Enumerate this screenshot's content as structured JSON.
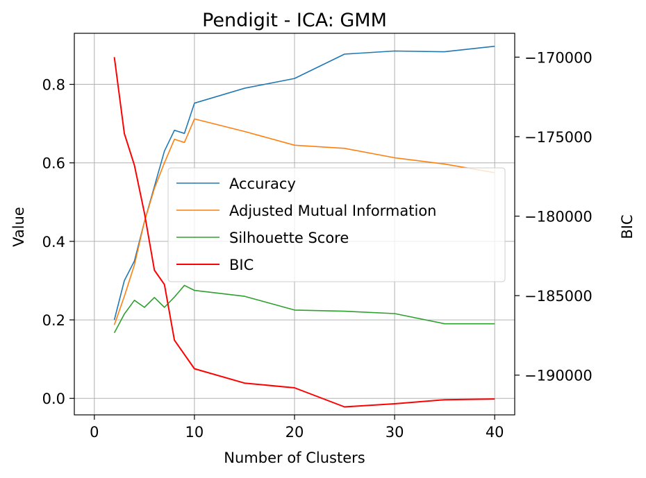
{
  "chart_data": {
    "type": "line",
    "title": "Pendigit - ICA: GMM",
    "xlabel": "Number of Clusters",
    "ylabel": "Value",
    "y2label": "BIC",
    "xlim": [
      -2,
      42
    ],
    "ylim": [
      -0.042,
      0.93
    ],
    "y2lim": [
      -192500,
      -168500
    ],
    "xticks": [
      0,
      10,
      20,
      30,
      40
    ],
    "xtick_labels": [
      "0",
      "10",
      "20",
      "30",
      "40"
    ],
    "yticks": [
      0.0,
      0.2,
      0.4,
      0.6,
      0.8
    ],
    "ytick_labels": [
      "0.0",
      "0.2",
      "0.4",
      "0.6",
      "0.8"
    ],
    "y2ticks": [
      -170000,
      -175000,
      -180000,
      -185000,
      -190000
    ],
    "y2tick_labels": [
      "−170000",
      "−175000",
      "−180000",
      "−185000",
      "−190000"
    ],
    "grid": true,
    "legend_position": "center-right",
    "x": [
      2,
      3,
      4,
      5,
      6,
      7,
      8,
      9,
      10,
      15,
      20,
      25,
      30,
      35,
      40
    ],
    "series": [
      {
        "name": "Accuracy",
        "axis": "left",
        "color": "#1f77b4",
        "values": [
          0.2,
          0.3,
          0.35,
          0.45,
          0.54,
          0.63,
          0.683,
          0.675,
          0.752,
          0.79,
          0.815,
          0.877,
          0.885,
          0.883,
          0.897
        ]
      },
      {
        "name": "Adjusted Mutual Information",
        "axis": "left",
        "color": "#ff7f0e",
        "values": [
          0.187,
          0.26,
          0.34,
          0.45,
          0.535,
          0.6,
          0.66,
          0.652,
          0.712,
          0.68,
          0.645,
          0.637,
          0.613,
          0.597,
          0.575
        ]
      },
      {
        "name": "Silhouette Score",
        "axis": "left",
        "color": "#2ca02c",
        "values": [
          0.167,
          0.215,
          0.25,
          0.232,
          0.257,
          0.232,
          0.258,
          0.288,
          0.275,
          0.26,
          0.225,
          0.222,
          0.216,
          0.19,
          0.19
        ]
      },
      {
        "name": "BIC",
        "axis": "right",
        "color": "#ff0000",
        "values": [
          -170000,
          -174800,
          -176800,
          -179800,
          -183400,
          -184300,
          -187800,
          -188700,
          -189600,
          -190500,
          -190800,
          -192000,
          -191800,
          -191550,
          -191500
        ]
      }
    ]
  }
}
